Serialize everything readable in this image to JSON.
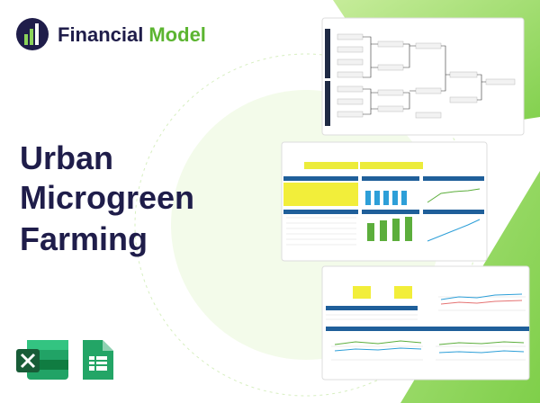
{
  "logo": {
    "primary": "Financial",
    "secondary": "Model"
  },
  "title": {
    "lines": [
      "Urban",
      "Microgreen",
      "Farming"
    ]
  }
}
